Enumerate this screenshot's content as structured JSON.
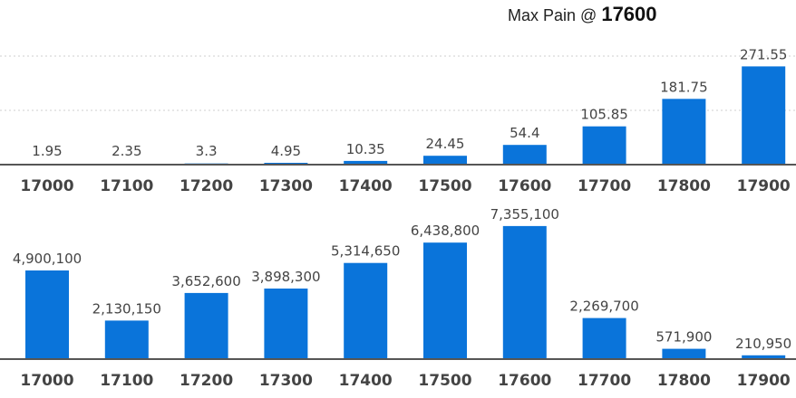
{
  "header": {
    "label": "Max Pain @",
    "value": "17600"
  },
  "colors": {
    "bar": "#0a74da",
    "baseline": "#555555",
    "grid": "#cfcfcf",
    "label": "#444444"
  },
  "chart_data": [
    {
      "type": "bar",
      "categories": [
        "17000",
        "17100",
        "17200",
        "17300",
        "17400",
        "17500",
        "17600",
        "17700",
        "17800",
        "17900"
      ],
      "values": [
        1.95,
        2.35,
        3.3,
        4.95,
        10.35,
        24.45,
        54.4,
        105.85,
        181.75,
        271.55
      ],
      "value_labels": [
        "1.95",
        "2.35",
        "3.3",
        "4.95",
        "10.35",
        "24.45",
        "54.4",
        "105.85",
        "181.75",
        "271.55"
      ],
      "ylim": [
        0,
        450
      ],
      "grid": true
    },
    {
      "type": "bar",
      "categories": [
        "17000",
        "17100",
        "17200",
        "17300",
        "17400",
        "17500",
        "17600",
        "17700",
        "17800",
        "17900"
      ],
      "values": [
        4900100,
        2130150,
        3652600,
        3898300,
        5314650,
        6438800,
        7355100,
        2269700,
        571900,
        210950
      ],
      "value_labels": [
        "4,900,100",
        "2,130,150",
        "3,652,600",
        "3,898,300",
        "5,314,650",
        "6,438,800",
        "7,355,100",
        "2,269,700",
        "571,900",
        "210,950"
      ],
      "ylim": [
        0,
        9000000
      ],
      "grid": false
    }
  ]
}
